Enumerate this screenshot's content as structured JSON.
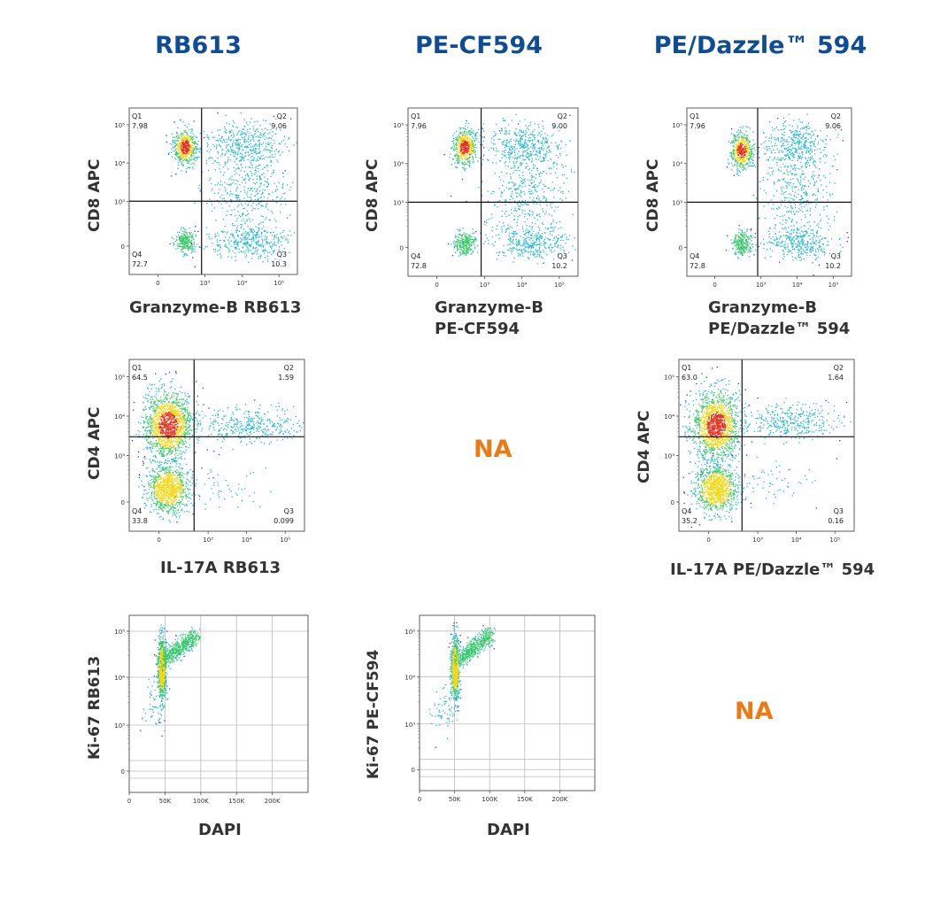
{
  "columns": [
    "RB613",
    "PE-CF594",
    "PE/Dazzle™ 594"
  ],
  "na_label": "NA",
  "chart_data": [
    {
      "id": "cd8-rb613",
      "type": "scatter",
      "subtype": "flow-cytometry-density-quadrant",
      "column": "RB613",
      "xlabel": "Granzyme-B RB613",
      "ylabel": "CD8 APC",
      "x_ticks": [
        "0",
        "10³",
        "10⁴",
        "10⁵"
      ],
      "y_ticks": [
        "0",
        "10³",
        "10⁴",
        "10⁵"
      ],
      "x_scale": "biexponential",
      "y_scale": "biexponential",
      "quadrants": [
        {
          "name": "Q1",
          "value": "7.98"
        },
        {
          "name": "Q2",
          "value": "9.06"
        },
        {
          "name": "Q3",
          "value": "10.3"
        },
        {
          "name": "Q4",
          "value": "72.7"
        }
      ],
      "gate": {
        "x": 0.43,
        "y": 0.56
      },
      "clusters": [
        {
          "cx": 0.33,
          "cy": 0.23,
          "sx": 0.035,
          "sy": 0.055,
          "n": 500,
          "peak": "red"
        },
        {
          "cx": 0.33,
          "cy": 0.8,
          "sx": 0.03,
          "sy": 0.035,
          "n": 240,
          "peak": "cyan"
        },
        {
          "cx": 0.68,
          "cy": 0.22,
          "sx": 0.12,
          "sy": 0.07,
          "n": 420,
          "peak": "blue"
        },
        {
          "cx": 0.72,
          "cy": 0.8,
          "sx": 0.12,
          "sy": 0.05,
          "n": 360,
          "peak": "blue"
        },
        {
          "cx": 0.7,
          "cy": 0.5,
          "sx": 0.12,
          "sy": 0.13,
          "n": 380,
          "peak": "blue"
        }
      ]
    },
    {
      "id": "cd8-pecf594",
      "type": "scatter",
      "subtype": "flow-cytometry-density-quadrant",
      "column": "PE-CF594",
      "xlabel": "Granzyme-B\nPE-CF594",
      "ylabel": "CD8 APC",
      "x_ticks": [
        "0",
        "10³",
        "10⁴",
        "10⁵"
      ],
      "y_ticks": [
        "0",
        "10³",
        "10⁴",
        "10⁵"
      ],
      "x_scale": "biexponential",
      "y_scale": "biexponential",
      "quadrants": [
        {
          "name": "Q1",
          "value": "7.96"
        },
        {
          "name": "Q2",
          "value": "9.00"
        },
        {
          "name": "Q3",
          "value": "10.2"
        },
        {
          "name": "Q4",
          "value": "72.8"
        }
      ],
      "gate": {
        "x": 0.43,
        "y": 0.56
      },
      "clusters": [
        {
          "cx": 0.33,
          "cy": 0.23,
          "sx": 0.035,
          "sy": 0.055,
          "n": 500,
          "peak": "red"
        },
        {
          "cx": 0.33,
          "cy": 0.8,
          "sx": 0.03,
          "sy": 0.035,
          "n": 240,
          "peak": "cyan"
        },
        {
          "cx": 0.68,
          "cy": 0.22,
          "sx": 0.12,
          "sy": 0.07,
          "n": 420,
          "peak": "blue"
        },
        {
          "cx": 0.72,
          "cy": 0.8,
          "sx": 0.12,
          "sy": 0.05,
          "n": 360,
          "peak": "blue"
        },
        {
          "cx": 0.7,
          "cy": 0.5,
          "sx": 0.12,
          "sy": 0.13,
          "n": 380,
          "peak": "blue"
        }
      ]
    },
    {
      "id": "cd8-pedazzle",
      "type": "scatter",
      "subtype": "flow-cytometry-density-quadrant",
      "column": "PE/Dazzle™ 594",
      "xlabel": "Granzyme-B\nPE/Dazzle™ 594",
      "ylabel": "CD8 APC",
      "x_ticks": [
        "0",
        "10³",
        "10⁴",
        "10⁵"
      ],
      "y_ticks": [
        "0",
        "10³",
        "10⁴",
        "10⁵"
      ],
      "x_scale": "biexponential",
      "y_scale": "biexponential",
      "quadrants": [
        {
          "name": "Q1",
          "value": "7.96"
        },
        {
          "name": "Q2",
          "value": "9.06"
        },
        {
          "name": "Q3",
          "value": "10.2"
        },
        {
          "name": "Q4",
          "value": "72.8"
        }
      ],
      "gate": {
        "x": 0.43,
        "y": 0.56
      },
      "clusters": [
        {
          "cx": 0.33,
          "cy": 0.25,
          "sx": 0.035,
          "sy": 0.055,
          "n": 500,
          "peak": "red"
        },
        {
          "cx": 0.33,
          "cy": 0.8,
          "sx": 0.03,
          "sy": 0.035,
          "n": 240,
          "peak": "cyan"
        },
        {
          "cx": 0.66,
          "cy": 0.22,
          "sx": 0.1,
          "sy": 0.07,
          "n": 380,
          "peak": "blue"
        },
        {
          "cx": 0.68,
          "cy": 0.8,
          "sx": 0.1,
          "sy": 0.05,
          "n": 340,
          "peak": "blue"
        },
        {
          "cx": 0.66,
          "cy": 0.5,
          "sx": 0.1,
          "sy": 0.13,
          "n": 340,
          "peak": "blue"
        }
      ]
    },
    {
      "id": "cd4-rb613",
      "type": "scatter",
      "subtype": "flow-cytometry-density-quadrant",
      "column": "RB613",
      "xlabel": "IL-17A RB613",
      "ylabel": "CD4 APC",
      "x_ticks": [
        "0",
        "10³",
        "10⁴",
        "10⁵"
      ],
      "y_ticks": [
        "0",
        "10³",
        "10⁴",
        "10⁵"
      ],
      "x_scale": "biexponential",
      "y_scale": "biexponential",
      "quadrants": [
        {
          "name": "Q1",
          "value": "64.5"
        },
        {
          "name": "Q2",
          "value": "1.59"
        },
        {
          "name": "Q3",
          "value": "0.099"
        },
        {
          "name": "Q4",
          "value": "33.8"
        }
      ],
      "gate": {
        "x": 0.37,
        "y": 0.45
      },
      "clusters": [
        {
          "cx": 0.22,
          "cy": 0.38,
          "sx": 0.07,
          "sy": 0.1,
          "n": 1400,
          "peak": "red"
        },
        {
          "cx": 0.22,
          "cy": 0.75,
          "sx": 0.06,
          "sy": 0.07,
          "n": 900,
          "peak": "green"
        },
        {
          "cx": 0.68,
          "cy": 0.38,
          "sx": 0.16,
          "sy": 0.05,
          "n": 380,
          "peak": "blue"
        },
        {
          "cx": 0.55,
          "cy": 0.75,
          "sx": 0.12,
          "sy": 0.06,
          "n": 50,
          "peak": "blue"
        }
      ]
    },
    {
      "id": "cd4-pedazzle",
      "type": "scatter",
      "subtype": "flow-cytometry-density-quadrant",
      "column": "PE/Dazzle™ 594",
      "xlabel": "IL-17A PE/Dazzle™ 594",
      "ylabel": "CD4 APC",
      "x_ticks": [
        "0",
        "10³",
        "10⁴",
        "10⁵"
      ],
      "y_ticks": [
        "0",
        "10³",
        "10⁴",
        "10⁵"
      ],
      "x_scale": "biexponential",
      "y_scale": "biexponential",
      "quadrants": [
        {
          "name": "Q1",
          "value": "63.0"
        },
        {
          "name": "Q2",
          "value": "1.64"
        },
        {
          "name": "Q3",
          "value": "0.16"
        },
        {
          "name": "Q4",
          "value": "35.2"
        }
      ],
      "gate": {
        "x": 0.36,
        "y": 0.45
      },
      "clusters": [
        {
          "cx": 0.21,
          "cy": 0.38,
          "sx": 0.07,
          "sy": 0.1,
          "n": 1400,
          "peak": "red"
        },
        {
          "cx": 0.21,
          "cy": 0.75,
          "sx": 0.06,
          "sy": 0.07,
          "n": 900,
          "peak": "green"
        },
        {
          "cx": 0.63,
          "cy": 0.36,
          "sx": 0.14,
          "sy": 0.05,
          "n": 360,
          "peak": "blue"
        },
        {
          "cx": 0.55,
          "cy": 0.72,
          "sx": 0.12,
          "sy": 0.06,
          "n": 60,
          "peak": "blue"
        }
      ]
    },
    {
      "id": "ki67-rb613",
      "type": "scatter",
      "subtype": "flow-cytometry-density-grid",
      "column": "RB613",
      "xlabel": "DAPI",
      "ylabel": "Ki-67 RB613",
      "x_ticks": [
        "0",
        "50K",
        "100K",
        "150K",
        "200K"
      ],
      "y_ticks": [
        "0",
        "10³",
        "10⁴",
        "10⁵"
      ],
      "x_scale": "linear",
      "y_scale": "biexponential",
      "xlim": [
        0,
        250000
      ],
      "points_shape": "diagonal-band",
      "clusters": [
        {
          "cx": 0.18,
          "cy": 0.3,
          "sx": 0.012,
          "sy": 0.09,
          "n": 700,
          "peak": "green"
        },
        {
          "cx": 0.27,
          "cy": 0.15,
          "sx": 0.05,
          "sy": 0.06,
          "n": 500,
          "peak": "cyan"
        },
        {
          "cx": 0.14,
          "cy": 0.5,
          "sx": 0.04,
          "sy": 0.06,
          "n": 60,
          "peak": "blue"
        }
      ]
    },
    {
      "id": "ki67-pecf594",
      "type": "scatter",
      "subtype": "flow-cytometry-density-grid",
      "column": "PE-CF594",
      "xlabel": "DAPI",
      "ylabel": "Ki-67 PE-CF594",
      "x_ticks": [
        "0",
        "50K",
        "100K",
        "150K",
        "200K"
      ],
      "y_ticks": [
        "0",
        "10³",
        "10⁴",
        "10⁵"
      ],
      "x_scale": "linear",
      "y_scale": "biexponential",
      "xlim": [
        0,
        250000
      ],
      "points_shape": "diagonal-band",
      "clusters": [
        {
          "cx": 0.2,
          "cy": 0.3,
          "sx": 0.012,
          "sy": 0.09,
          "n": 700,
          "peak": "green"
        },
        {
          "cx": 0.3,
          "cy": 0.15,
          "sx": 0.05,
          "sy": 0.06,
          "n": 500,
          "peak": "cyan"
        },
        {
          "cx": 0.14,
          "cy": 0.55,
          "sx": 0.04,
          "sy": 0.06,
          "n": 60,
          "peak": "blue"
        }
      ]
    }
  ]
}
